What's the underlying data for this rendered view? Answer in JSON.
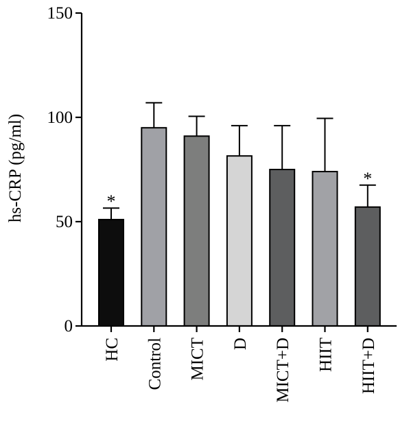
{
  "chart_data": {
    "type": "bar",
    "ylabel": "hs-CRP (pg/ml)",
    "ylim": [
      0,
      150
    ],
    "yticks": [
      0,
      50,
      100,
      150
    ],
    "grid": false,
    "categories": [
      "HC",
      "Control",
      "MICT",
      "D",
      "MICT+D",
      "HIIT",
      "HIIT+D"
    ],
    "values": [
      51,
      95,
      91,
      81.5,
      75,
      74,
      57
    ],
    "error_upper": [
      5.5,
      12,
      9.5,
      14.5,
      21,
      25.5,
      10.5
    ],
    "significance": [
      "*",
      "",
      "",
      "",
      "",
      "",
      "*"
    ],
    "colors": [
      "#0d0d0d",
      "#a0a1a6",
      "#7d7e7d",
      "#d5d5d5",
      "#5d5e5f",
      "#a1a2a6",
      "#5d5e5f"
    ]
  }
}
